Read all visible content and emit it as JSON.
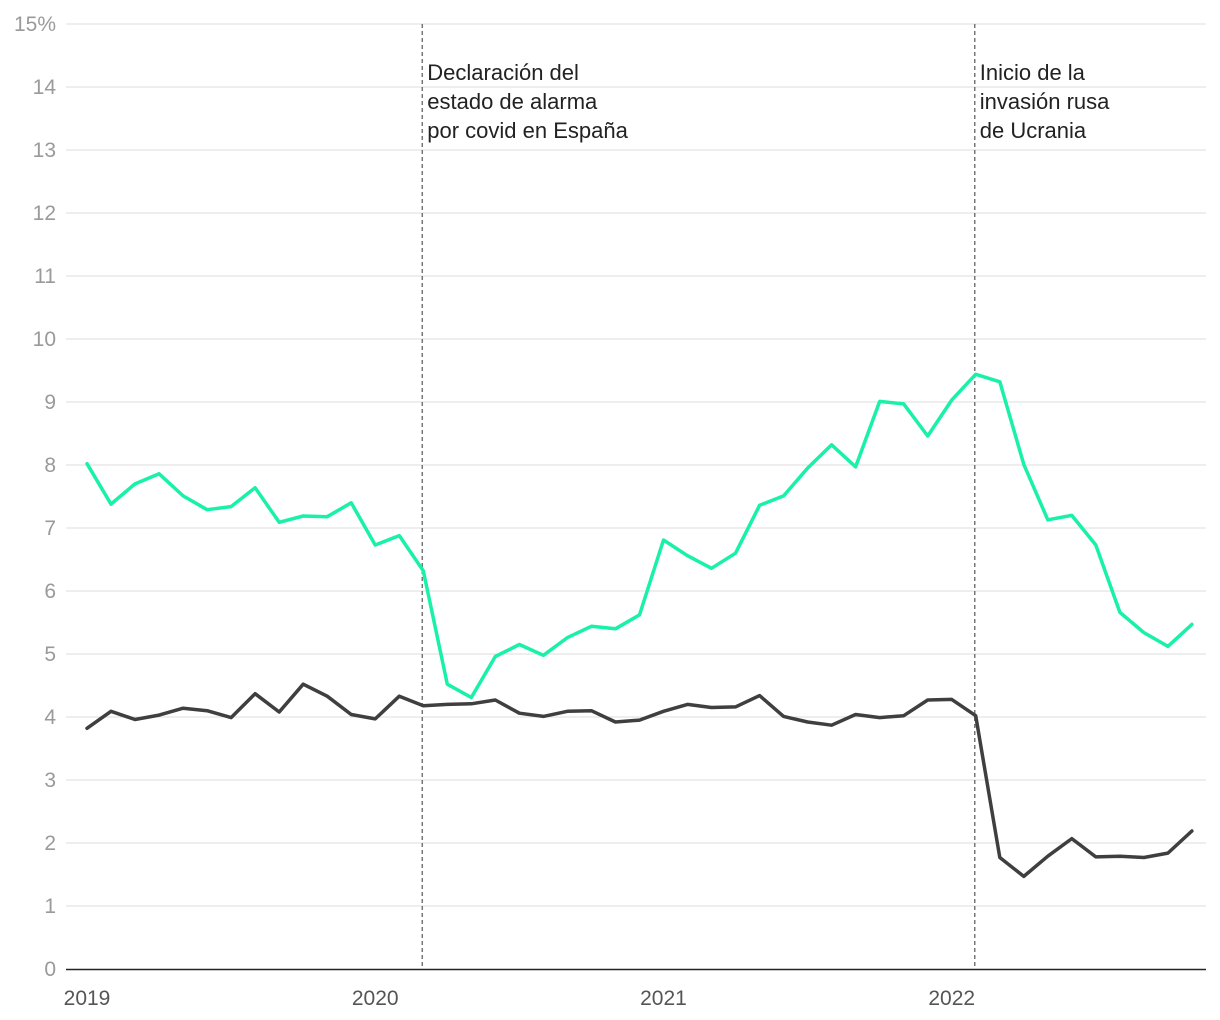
{
  "chart_data": {
    "type": "line",
    "title": "",
    "xlabel": "",
    "ylabel": "",
    "y_unit_label": "15%",
    "ylim": [
      0,
      15
    ],
    "yticks": [
      0,
      1,
      2,
      3,
      4,
      5,
      6,
      7,
      8,
      9,
      10,
      11,
      12,
      13,
      14,
      15
    ],
    "x_tick_labels": [
      "2019",
      "2020",
      "2021",
      "2022"
    ],
    "x_start": "2019-01",
    "grid": true,
    "legend": "none",
    "series": [
      {
        "color": "#19f0a8",
        "values": [
          8.02,
          7.38,
          7.7,
          7.86,
          7.51,
          7.29,
          7.34,
          7.64,
          7.09,
          7.19,
          7.18,
          7.4,
          6.73,
          6.88,
          6.32,
          4.52,
          4.31,
          4.96,
          5.15,
          4.98,
          5.26,
          5.44,
          5.4,
          5.62,
          6.81,
          6.56,
          6.36,
          6.6,
          7.36,
          7.51,
          7.95,
          8.32,
          7.97,
          9.01,
          8.97,
          8.46,
          9.03,
          9.44,
          9.32,
          8.01,
          7.13,
          7.2,
          6.73,
          5.66,
          5.34,
          5.12,
          5.47
        ]
      },
      {
        "color": "#3f3f3f",
        "values": [
          3.82,
          4.09,
          3.96,
          4.03,
          4.14,
          4.1,
          3.99,
          4.37,
          4.08,
          4.52,
          4.33,
          4.04,
          3.97,
          4.33,
          4.18,
          4.2,
          4.21,
          4.27,
          4.06,
          4.01,
          4.09,
          4.1,
          3.92,
          3.95,
          4.09,
          4.2,
          4.15,
          4.16,
          4.34,
          4.01,
          3.92,
          3.87,
          4.04,
          3.99,
          4.02,
          4.27,
          4.28,
          4.02,
          1.77,
          1.47,
          1.79,
          2.07,
          1.78,
          1.79,
          1.77,
          1.84,
          2.19
        ]
      }
    ],
    "annotations": [
      {
        "x": "2020-03",
        "lines": [
          "Declaración del",
          "estado de alarma",
          "por covid en España"
        ]
      },
      {
        "x": "2022-02",
        "lines": [
          "Inicio de la",
          "invasión rusa",
          "de Ucrania"
        ]
      }
    ]
  }
}
